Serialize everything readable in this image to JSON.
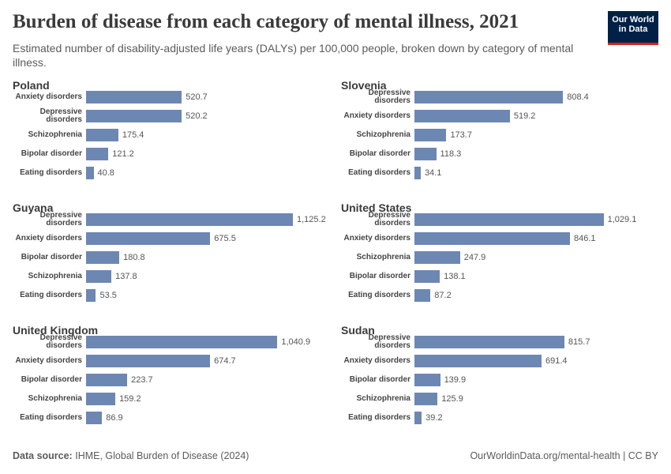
{
  "title": "Burden of disease from each category of mental illness, 2021",
  "subtitle": "Estimated number of disability-adjusted life years (DALYs) per 100,000 people, broken down by category of mental illness.",
  "logo": [
    "Our World",
    "in Data"
  ],
  "source_label": "Data source:",
  "source": "IHME, Global Burden of Disease (2024)",
  "footer_url": "OurWorldinData.org/mental-health | CC BY",
  "chart_data": [
    {
      "type": "bar",
      "title": "Poland",
      "color": "#6d87b3",
      "categories": [
        "Anxiety disorders",
        "Depressive disorders",
        "Schizophrenia",
        "Bipolar disorder",
        "Eating disorders"
      ],
      "values": [
        520.7,
        520.2,
        175.4,
        121.2,
        40.8
      ]
    },
    {
      "type": "bar",
      "title": "Slovenia",
      "color": "#6d87b3",
      "categories": [
        "Depressive disorders",
        "Anxiety disorders",
        "Schizophrenia",
        "Bipolar disorder",
        "Eating disorders"
      ],
      "values": [
        808.4,
        519.2,
        173.7,
        118.3,
        34.1
      ]
    },
    {
      "type": "bar",
      "title": "Guyana",
      "color": "#6d87b3",
      "categories": [
        "Depressive disorders",
        "Anxiety disorders",
        "Bipolar disorder",
        "Schizophrenia",
        "Eating disorders"
      ],
      "values": [
        1125.2,
        675.5,
        180.8,
        137.8,
        53.5
      ],
      "value_labels": [
        "1,125.2",
        "675.5",
        "180.8",
        "137.8",
        "53.5"
      ]
    },
    {
      "type": "bar",
      "title": "United States",
      "color": "#6d87b3",
      "categories": [
        "Depressive disorders",
        "Anxiety disorders",
        "Schizophrenia",
        "Bipolar disorder",
        "Eating disorders"
      ],
      "values": [
        1029.1,
        846.1,
        247.9,
        138.1,
        87.2
      ],
      "value_labels": [
        "1,029.1",
        "846.1",
        "247.9",
        "138.1",
        "87.2"
      ]
    },
    {
      "type": "bar",
      "title": "United Kingdom",
      "color": "#6d87b3",
      "categories": [
        "Depressive disorders",
        "Anxiety disorders",
        "Bipolar disorder",
        "Schizophrenia",
        "Eating disorders"
      ],
      "values": [
        1040.9,
        674.7,
        223.7,
        159.2,
        86.9
      ],
      "value_labels": [
        "1,040.9",
        "674.7",
        "223.7",
        "159.2",
        "86.9"
      ]
    },
    {
      "type": "bar",
      "title": "Sudan",
      "color": "#6d87b3",
      "categories": [
        "Depressive disorders",
        "Anxiety disorders",
        "Bipolar disorder",
        "Schizophrenia",
        "Eating disorders"
      ],
      "values": [
        815.7,
        691.4,
        139.9,
        125.9,
        39.2
      ]
    }
  ]
}
